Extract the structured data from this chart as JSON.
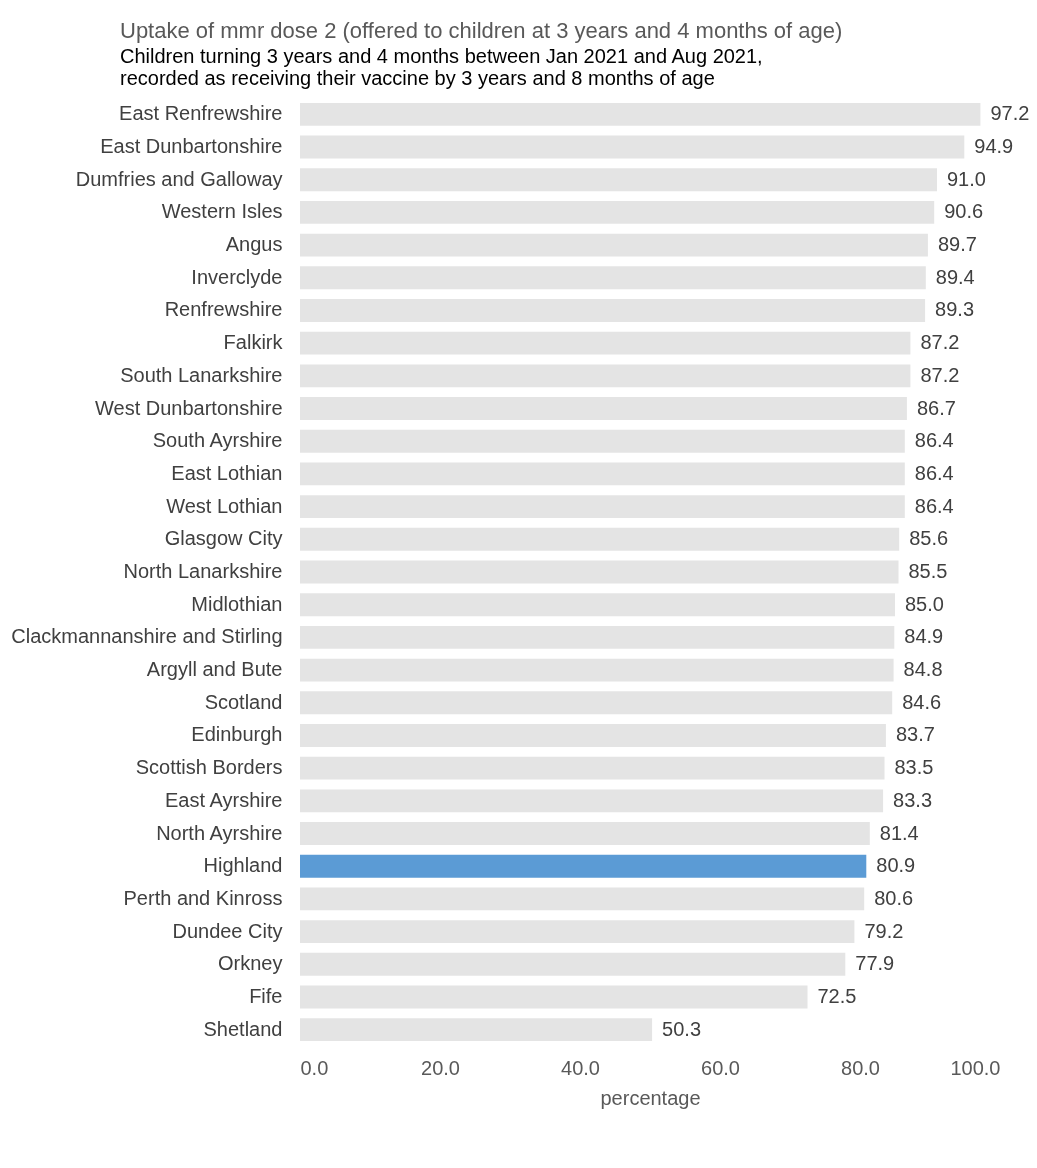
{
  "chart_data": {
    "type": "bar",
    "orientation": "horizontal",
    "title": "Uptake of mmr dose 2 (offered to children at 3 years and 4 months of age)",
    "subtitle": "Children turning 3 years and 4 months between Jan 2021 and Aug 2021, recorded as receiving their vaccine by 3 years and 8 months of age",
    "xlabel": "percentage",
    "categories": [
      "East Renfrewshire",
      "East Dunbartonshire",
      "Dumfries and Galloway",
      "Western Isles",
      "Angus",
      "Inverclyde",
      "Renfrewshire",
      "Falkirk",
      "South Lanarkshire",
      "West Dunbartonshire",
      "South Ayrshire",
      "East Lothian",
      "West Lothian",
      "Glasgow City",
      "North Lanarkshire",
      "Midlothian",
      "Clackmannanshire and Stirling",
      "Argyll and Bute",
      "Scotland",
      "Edinburgh",
      "Scottish Borders",
      "East Ayrshire",
      "North Ayrshire",
      "Highland",
      "Perth and Kinross",
      "Dundee City",
      "Orkney",
      "Fife",
      "Shetland"
    ],
    "values": [
      97.2,
      94.9,
      91.0,
      90.6,
      89.7,
      89.4,
      89.3,
      87.2,
      87.2,
      86.7,
      86.4,
      86.4,
      86.4,
      85.6,
      85.5,
      85.0,
      84.9,
      84.8,
      84.6,
      83.7,
      83.5,
      83.3,
      81.4,
      80.9,
      80.6,
      79.2,
      77.9,
      72.5,
      50.3
    ],
    "value_labels": [
      "97.2",
      "94.9",
      "91.0",
      "90.6",
      "89.7",
      "89.4",
      "89.3",
      "87.2",
      "87.2",
      "86.7",
      "86.4",
      "86.4",
      "86.4",
      "85.6",
      "85.5",
      "85.0",
      "84.9",
      "84.8",
      "84.6",
      "83.7",
      "83.5",
      "83.3",
      "81.4",
      "80.9",
      "80.6",
      "79.2",
      "77.9",
      "72.5",
      "50.3"
    ],
    "colors": [
      "#e4e4e4",
      "#e4e4e4",
      "#e4e4e4",
      "#e4e4e4",
      "#e4e4e4",
      "#e4e4e4",
      "#e4e4e4",
      "#e4e4e4",
      "#e4e4e4",
      "#e4e4e4",
      "#e4e4e4",
      "#e4e4e4",
      "#e4e4e4",
      "#e4e4e4",
      "#e4e4e4",
      "#e4e4e4",
      "#e4e4e4",
      "#e4e4e4",
      "#e4e4e4",
      "#e4e4e4",
      "#e4e4e4",
      "#e4e4e4",
      "#e4e4e4",
      "#5b9bd5",
      "#e4e4e4",
      "#e4e4e4",
      "#e4e4e4",
      "#e4e4e4",
      "#e4e4e4"
    ],
    "xlim": [
      0,
      100
    ],
    "xticks": [
      {
        "value": 0,
        "label": "0.0"
      },
      {
        "value": 20,
        "label": "20.0"
      },
      {
        "value": 40,
        "label": "40.0"
      },
      {
        "value": 60,
        "label": "60.0"
      },
      {
        "value": 80,
        "label": "80.0"
      },
      {
        "value": 100,
        "label": "100.0"
      }
    ],
    "grid": false
  }
}
